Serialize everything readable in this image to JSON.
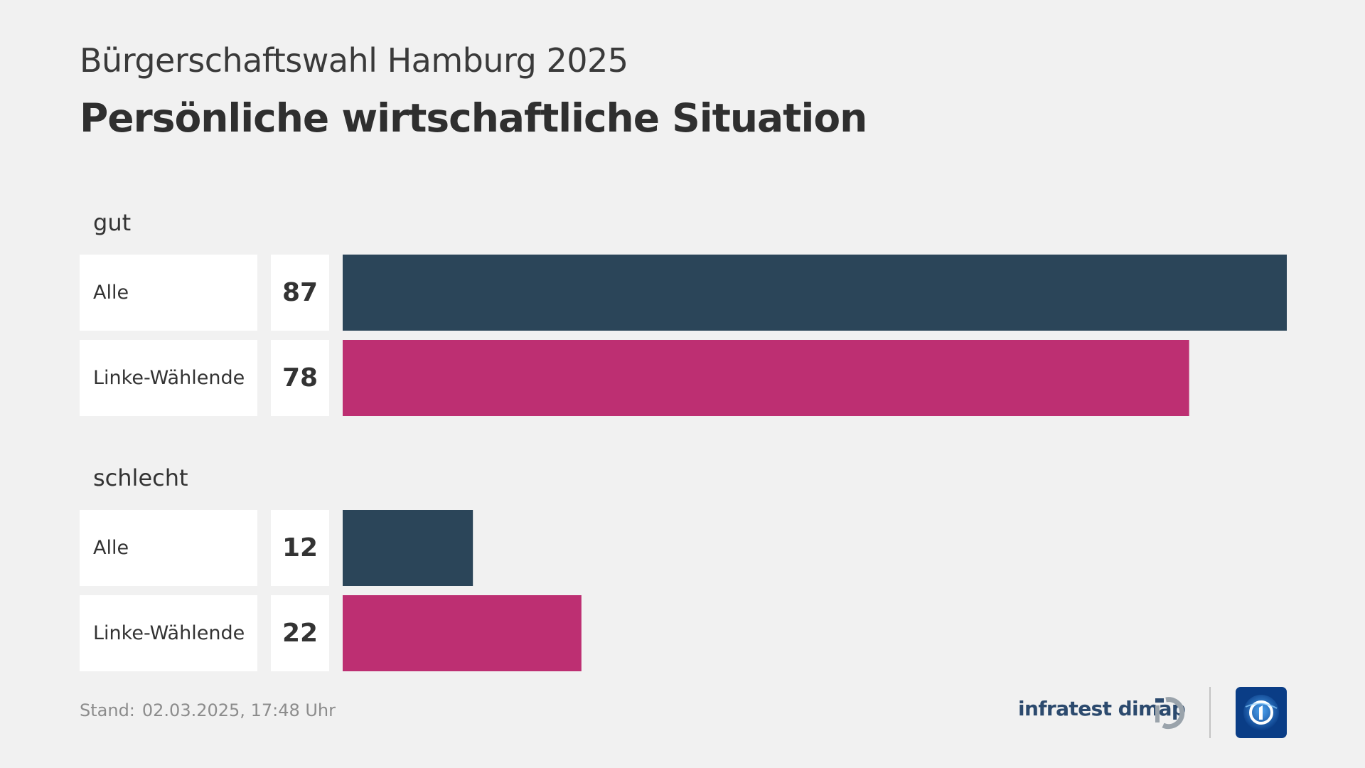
{
  "header": {
    "supertitle": "Bürgerschaftswahl Hamburg 2025",
    "title": "Persönliche wirtschaftliche Situation"
  },
  "chart_data": {
    "type": "bar",
    "orientation": "horizontal",
    "xlim": [
      0,
      87
    ],
    "groups": [
      {
        "label": "gut",
        "bars": [
          {
            "label": "Alle",
            "value": 87,
            "color": "#2b4559"
          },
          {
            "label": "Linke-Wählende",
            "value": 78,
            "color": "#bd2f72"
          }
        ]
      },
      {
        "label": "schlecht",
        "bars": [
          {
            "label": "Alle",
            "value": 12,
            "color": "#2b4559"
          },
          {
            "label": "Linke-Wählende",
            "value": 22,
            "color": "#bd2f72"
          }
        ]
      }
    ]
  },
  "footer": {
    "stand_label": "Stand:",
    "stand_value": "02.03.2025, 17:48 Uhr",
    "brand": "infratest dimap"
  },
  "icons": {
    "brand_mark": "infratest-dimap-logo-icon",
    "broadcaster_logo": "tagesschau-logo-icon"
  }
}
